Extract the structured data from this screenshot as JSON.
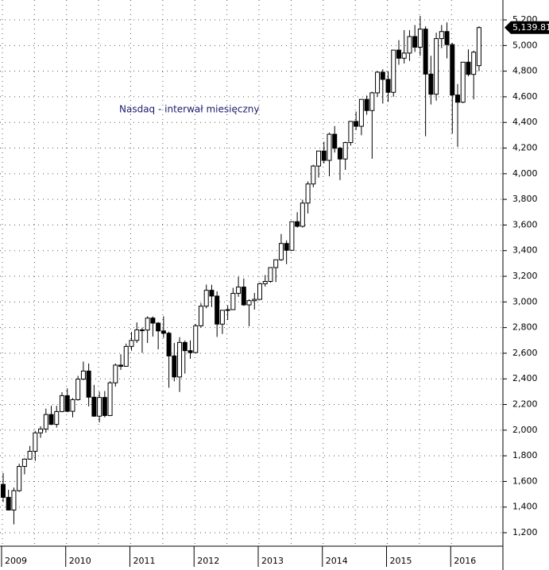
{
  "chart_data": {
    "type": "candlestick",
    "title": "Nasdaq - interwał miesięczny",
    "categories": [
      "2009",
      null,
      null,
      null,
      null,
      null,
      null,
      null,
      null,
      null,
      null,
      null,
      "2010",
      null,
      null,
      null,
      null,
      null,
      null,
      null,
      null,
      null,
      null,
      null,
      "2011",
      null,
      null,
      null,
      null,
      null,
      null,
      null,
      null,
      null,
      null,
      null,
      "2012",
      null,
      null,
      null,
      null,
      null,
      null,
      null,
      null,
      null,
      null,
      null,
      "2013",
      null,
      null,
      null,
      null,
      null,
      null,
      null,
      null,
      null,
      null,
      null,
      "2014",
      null,
      null,
      null,
      null,
      null,
      null,
      null,
      null,
      null,
      null,
      null,
      "2015",
      null,
      null,
      null,
      null,
      null,
      null,
      null,
      null,
      null,
      null,
      null,
      "2016",
      null,
      null,
      null,
      null,
      null
    ],
    "open": [
      1577,
      1476,
      1377,
      1528,
      1717,
      1774,
      1835,
      1979,
      2009,
      2122,
      2045,
      2145,
      2269,
      2147,
      2238,
      2398,
      2461,
      2257,
      2109,
      2255,
      2114,
      2369,
      2507,
      2498,
      2653,
      2700,
      2782,
      2781,
      2874,
      2835,
      2774,
      2756,
      2579,
      2415,
      2684,
      2620,
      2605,
      2814,
      2967,
      3091,
      3046,
      2827,
      2935,
      2940,
      3067,
      3116,
      2977,
      3010,
      3020,
      3142,
      3160,
      3268,
      3329,
      3456,
      3403,
      3626,
      3590,
      3771,
      3920,
      4060,
      4177,
      4104,
      4308,
      4199,
      4115,
      4243,
      4408,
      4370,
      4580,
      4493,
      4631,
      4792,
      4736,
      4635,
      4964,
      4901,
      4941,
      5070,
      4987,
      5128,
      4777,
      4620,
      5054,
      5109,
      5007,
      4614,
      4558,
      4870,
      4775,
      4843
    ],
    "high": [
      1665,
      1535,
      1552,
      1738,
      1780,
      1877,
      1994,
      2030,
      2168,
      2190,
      2190,
      2296,
      2326,
      2250,
      2423,
      2535,
      2520,
      2353,
      2300,
      2305,
      2382,
      2520,
      2592,
      2675,
      2766,
      2840,
      2800,
      2888,
      2887,
      2843,
      2888,
      2768,
      2680,
      2725,
      2700,
      2700,
      2828,
      2990,
      3135,
      3134,
      3083,
      2935,
      2973,
      3110,
      3197,
      3183,
      3020,
      3070,
      3150,
      3210,
      3270,
      3330,
      3530,
      3480,
      3626,
      3700,
      3798,
      3940,
      4070,
      4177,
      4250,
      4320,
      4372,
      4210,
      4250,
      4410,
      4485,
      4580,
      4610,
      4640,
      4800,
      4815,
      4800,
      4964,
      5042,
      5120,
      5120,
      5160,
      5231,
      5150,
      4920,
      5100,
      5160,
      5180,
      5020,
      4700,
      4870,
      4970,
      4960,
      5150
    ],
    "low": [
      1439,
      1377,
      1265,
      1518,
      1655,
      1770,
      1760,
      1940,
      1980,
      2040,
      2020,
      2140,
      2140,
      2100,
      2230,
      2390,
      2185,
      2105,
      2061,
      2100,
      2110,
      2340,
      2470,
      2495,
      2620,
      2680,
      2603,
      2680,
      2730,
      2630,
      2720,
      2331,
      2381,
      2298,
      2441,
      2557,
      2605,
      2800,
      2950,
      2960,
      2727,
      2750,
      2860,
      2940,
      3040,
      2970,
      2810,
      2940,
      3020,
      3120,
      3150,
      3155,
      3320,
      3295,
      3400,
      3580,
      3580,
      3690,
      3895,
      3970,
      4080,
      3980,
      4165,
      3950,
      4030,
      4220,
      4340,
      4300,
      4460,
      4117,
      4600,
      4547,
      4560,
      4600,
      4850,
      4860,
      4880,
      4950,
      4920,
      4292,
      4540,
      4570,
      4980,
      4900,
      4313,
      4210,
      4550,
      4760,
      4580,
      4800
    ],
    "close": [
      1476,
      1377,
      1528,
      1717,
      1774,
      1835,
      1979,
      2009,
      2122,
      2045,
      2145,
      2269,
      2147,
      2238,
      2398,
      2461,
      2257,
      2109,
      2255,
      2114,
      2369,
      2507,
      2498,
      2653,
      2700,
      2782,
      2781,
      2874,
      2835,
      2774,
      2756,
      2579,
      2415,
      2684,
      2620,
      2605,
      2814,
      2967,
      3091,
      3046,
      2827,
      2935,
      2940,
      3067,
      3116,
      2977,
      3010,
      3020,
      3142,
      3160,
      3268,
      3329,
      3456,
      3403,
      3626,
      3590,
      3771,
      3920,
      4060,
      4177,
      4104,
      4308,
      4199,
      4115,
      4243,
      4408,
      4370,
      4580,
      4493,
      4631,
      4792,
      4736,
      4635,
      4964,
      4901,
      4941,
      5070,
      4987,
      5128,
      4777,
      4620,
      5054,
      5109,
      5007,
      4614,
      4558,
      4870,
      4775,
      4948,
      5139.81
    ],
    "last_label": "5,139.81",
    "up_color": "#ffffff",
    "down_color": "#000000",
    "ylim": [
      1095,
      5355
    ],
    "yticks": [
      {
        "value": 1200,
        "label": "1,200"
      },
      {
        "value": 1400,
        "label": "1,400"
      },
      {
        "value": 1600,
        "label": "1,600"
      },
      {
        "value": 1800,
        "label": "1,800"
      },
      {
        "value": 2000,
        "label": "2,000"
      },
      {
        "value": 2200,
        "label": "2,200"
      },
      {
        "value": 2400,
        "label": "2,400"
      },
      {
        "value": 2600,
        "label": "2,600"
      },
      {
        "value": 2800,
        "label": "2,800"
      },
      {
        "value": 3000,
        "label": "3,000"
      },
      {
        "value": 3200,
        "label": "3,200"
      },
      {
        "value": 3400,
        "label": "3,400"
      },
      {
        "value": 3600,
        "label": "3,600"
      },
      {
        "value": 3800,
        "label": "3,800"
      },
      {
        "value": 4000,
        "label": "4,000"
      },
      {
        "value": 4200,
        "label": "4,200"
      },
      {
        "value": 4400,
        "label": "4,400"
      },
      {
        "value": 4600,
        "label": "4,600"
      },
      {
        "value": 4800,
        "label": "4,800"
      },
      {
        "value": 5000,
        "label": "5,000"
      },
      {
        "value": 5200,
        "label": "5,200"
      }
    ],
    "grid": true
  }
}
